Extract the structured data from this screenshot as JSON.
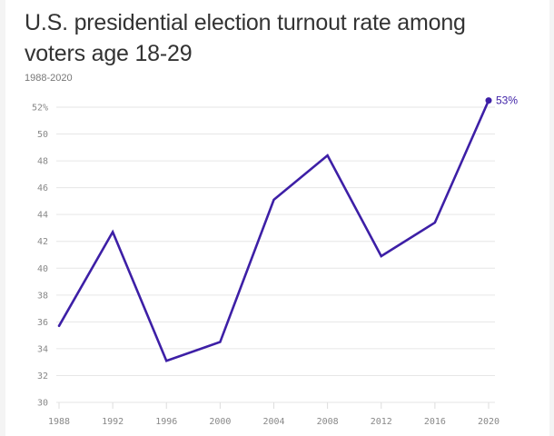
{
  "chart_data": {
    "type": "line",
    "title": "U.S. presidential election turnout rate among voters age 18-29",
    "subtitle": "1988-2020",
    "xlabel": "",
    "ylabel": "",
    "x": [
      1988,
      1992,
      1996,
      2000,
      2004,
      2008,
      2012,
      2016,
      2020
    ],
    "series": [
      {
        "name": "Turnout rate, ages 18-29 (%)",
        "values": [
          35.7,
          42.7,
          33.1,
          34.5,
          45.1,
          48.4,
          40.9,
          43.4,
          52.5
        ]
      }
    ],
    "ylim": [
      30,
      52
    ],
    "yticks": [
      30,
      32,
      34,
      36,
      38,
      40,
      42,
      44,
      46,
      48,
      50,
      52
    ],
    "ytick_labels": [
      "30",
      "32",
      "34",
      "36",
      "38",
      "40",
      "42",
      "44",
      "46",
      "48",
      "50",
      "52%"
    ],
    "xticks": [
      1988,
      1992,
      1996,
      2000,
      2004,
      2008,
      2012,
      2016,
      2020
    ],
    "xtick_labels": [
      "1988",
      "1992",
      "1996",
      "2000",
      "2004",
      "2008",
      "2012",
      "2016",
      "2020"
    ],
    "end_label": "53%",
    "grid": true,
    "legend": "none",
    "colors": {
      "line": "#3d1fa6",
      "grid": "#e6e6e6",
      "tick_text": "#888888"
    }
  }
}
